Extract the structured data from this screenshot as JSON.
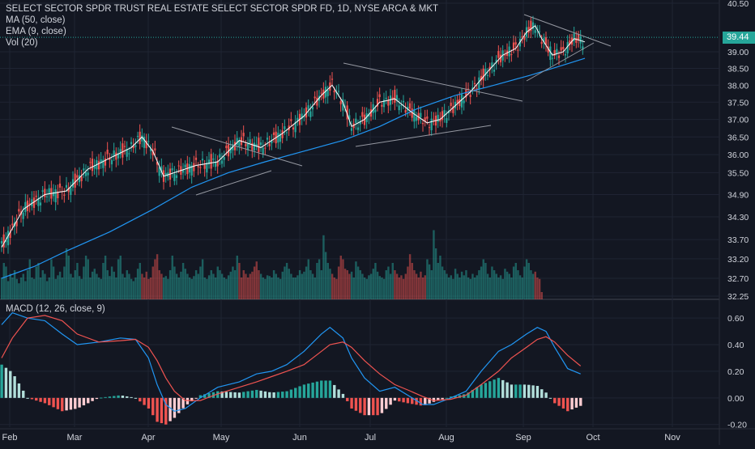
{
  "legend": {
    "title": "SELECT SECTOR SPDR TRUST REAL ESTATE SELECT SECTOR SPDR FD, 1D, NYSE ARCA & MKT",
    "ma": "MA (50, close)",
    "ema": "EMA (9, close)",
    "vol": "Vol (20)",
    "macd": "MACD (12, 26, close, 9)"
  },
  "last_price_label": "39.44",
  "colors": {
    "background": "#131722",
    "grid": "#1f2433",
    "up": "#26a69a",
    "down": "#ef5350",
    "ma50": "#2196f3",
    "ema9": "#ffffff",
    "macd": "#2196f3",
    "signal": "#ef5350",
    "hist_up_strong": "#26a69a",
    "hist_up_weak": "#b2dfdb",
    "hist_down_strong": "#ef5350",
    "hist_down_weak": "#ffcdd2",
    "text": "#d1d4dc",
    "trendline": "#9598a1"
  },
  "chart_data": [
    {
      "type": "candlestick",
      "title": "SELECT SECTOR SPDR TRUST REAL ESTATE SELECT SECTOR SPDR FD, 1D, NYSE ARCA & MKT",
      "x_ticks": [
        "Feb",
        "Mar",
        "Apr",
        "May",
        "Jun",
        "Jul",
        "Aug",
        "Sep",
        "Oct",
        "Nov"
      ],
      "y_ticks": [
        "40.50",
        "39.00",
        "38.50",
        "38.00",
        "37.50",
        "37.00",
        "36.50",
        "36.00",
        "35.50",
        "34.90",
        "34.30",
        "33.70",
        "33.20",
        "32.70",
        "32.25"
      ],
      "y_axis": "log",
      "ylim": [
        32.25,
        40.5
      ],
      "last_close": 39.44,
      "series": [
        {
          "name": "MA (50, close)",
          "points": [
            [
              0,
              32.7
            ],
            [
              15,
              33.0
            ],
            [
              30,
              33.4
            ],
            [
              50,
              33.9
            ],
            [
              70,
              34.5
            ],
            [
              88,
              35.1
            ],
            [
              105,
              35.5
            ],
            [
              122,
              35.8
            ],
            [
              140,
              36.1
            ],
            [
              158,
              36.4
            ],
            [
              175,
              36.8
            ],
            [
              192,
              37.3
            ],
            [
              210,
              37.7
            ],
            [
              228,
              38.0
            ],
            [
              245,
              38.3
            ],
            [
              260,
              38.6
            ],
            [
              270,
              38.8
            ]
          ]
        },
        {
          "name": "EMA (9, close)",
          "points": [
            [
              0,
              33.5
            ],
            [
              10,
              34.5
            ],
            [
              20,
              34.9
            ],
            [
              30,
              35.0
            ],
            [
              40,
              35.6
            ],
            [
              50,
              35.9
            ],
            [
              60,
              36.2
            ],
            [
              65,
              36.5
            ],
            [
              70,
              36.1
            ],
            [
              75,
              35.4
            ],
            [
              80,
              35.5
            ],
            [
              90,
              35.7
            ],
            [
              100,
              35.8
            ],
            [
              110,
              36.4
            ],
            [
              120,
              36.2
            ],
            [
              130,
              36.6
            ],
            [
              140,
              37.1
            ],
            [
              148,
              37.7
            ],
            [
              153,
              38.0
            ],
            [
              158,
              37.5
            ],
            [
              162,
              36.8
            ],
            [
              168,
              37.0
            ],
            [
              175,
              37.5
            ],
            [
              182,
              37.6
            ],
            [
              190,
              37.2
            ],
            [
              197,
              36.9
            ],
            [
              203,
              37.0
            ],
            [
              210,
              37.4
            ],
            [
              217,
              37.8
            ],
            [
              225,
              38.4
            ],
            [
              232,
              38.9
            ],
            [
              238,
              39.1
            ],
            [
              243,
              39.6
            ],
            [
              247,
              39.8
            ],
            [
              250,
              39.4
            ],
            [
              255,
              38.9
            ],
            [
              260,
              39.0
            ],
            [
              265,
              39.4
            ],
            [
              270,
              39.3
            ]
          ]
        }
      ]
    },
    {
      "type": "bar",
      "name": "Vol (20)",
      "unit": "relative",
      "values": [
        0.3,
        0.5,
        0.45,
        0.25,
        0.35,
        0.3,
        0.4,
        0.28,
        0.22,
        0.3,
        0.35,
        0.25,
        0.4,
        0.55,
        0.3,
        0.28,
        0.45,
        0.5,
        0.3,
        0.4,
        0.35,
        0.25,
        0.3,
        0.55,
        0.45,
        0.28,
        0.33,
        0.38,
        0.3,
        0.45,
        0.7,
        0.6,
        0.35,
        0.3,
        0.4,
        0.5,
        0.32,
        0.28,
        0.45,
        0.6,
        0.55,
        0.3,
        0.38,
        0.42,
        0.35,
        0.3,
        0.28,
        0.5,
        0.6,
        0.4,
        0.32,
        0.45,
        0.38,
        0.3,
        0.55,
        0.6,
        0.35,
        0.3,
        0.4,
        0.35,
        0.28,
        0.25,
        0.3,
        0.42,
        0.5,
        0.35,
        0.3,
        0.38,
        0.28,
        0.3,
        0.45,
        0.55,
        0.62,
        0.4,
        0.35,
        0.3,
        0.32,
        0.28,
        0.4,
        0.6,
        0.45,
        0.35,
        0.3,
        0.38,
        0.5,
        0.42,
        0.35,
        0.3,
        0.28,
        0.32,
        0.4,
        0.35,
        0.45,
        0.55,
        0.3,
        0.28,
        0.33,
        0.4,
        0.35,
        0.3,
        0.45,
        0.4,
        0.35,
        0.3,
        0.28,
        0.33,
        0.38,
        0.45,
        0.4,
        0.6,
        0.5,
        0.3,
        0.4,
        0.35,
        0.3,
        0.35,
        0.38,
        0.45,
        0.52,
        0.4,
        0.35,
        0.3,
        0.28,
        0.33,
        0.32,
        0.3,
        0.4,
        0.35,
        0.3,
        0.28,
        0.38,
        0.45,
        0.5,
        0.42,
        0.35,
        0.3,
        0.3,
        0.33,
        0.4,
        0.35,
        0.38,
        0.45,
        0.55,
        0.4,
        0.35,
        0.3,
        0.5,
        0.55,
        0.4,
        0.88,
        0.65,
        0.5,
        0.42,
        0.35,
        0.3,
        0.28,
        0.45,
        0.6,
        0.55,
        0.42,
        0.4,
        0.35,
        0.38,
        0.3,
        0.52,
        0.45,
        0.4,
        0.35,
        0.3,
        0.28,
        0.33,
        0.35,
        0.42,
        0.5,
        0.38,
        0.32,
        0.3,
        0.28,
        0.4,
        0.45,
        0.35,
        0.5,
        0.4,
        0.35,
        0.3,
        0.33,
        0.28,
        0.35,
        0.45,
        0.62,
        0.5,
        0.4,
        0.35,
        0.3,
        0.38,
        0.3,
        0.33,
        0.55,
        0.48,
        0.4,
        0.95,
        0.7,
        0.5,
        0.6,
        0.45,
        0.4,
        0.35,
        0.3,
        0.33,
        0.28,
        0.42,
        0.35,
        0.3,
        0.38,
        0.33,
        0.4,
        0.3,
        0.28,
        0.35,
        0.3,
        0.33,
        0.4,
        0.45,
        0.55,
        0.5,
        0.35,
        0.3,
        0.45,
        0.4,
        0.35,
        0.3,
        0.33,
        0.28,
        0.42,
        0.38,
        0.35,
        0.3,
        0.45,
        0.5,
        0.4,
        0.33,
        0.3,
        0.45,
        0.55,
        0.5,
        0.4,
        0.35,
        0.38,
        0.3,
        0.28,
        0.1
      ]
    },
    {
      "type": "line",
      "title": "MACD (12, 26, close, 9)",
      "y_ticks": [
        "0.60",
        "0.40",
        "0.20",
        "0.00",
        "-0.20"
      ],
      "ylim": [
        -0.22,
        0.68
      ],
      "series": [
        {
          "name": "MACD",
          "points": [
            [
              0,
              0.55
            ],
            [
              5,
              0.64
            ],
            [
              12,
              0.6
            ],
            [
              20,
              0.58
            ],
            [
              28,
              0.48
            ],
            [
              35,
              0.4
            ],
            [
              45,
              0.42
            ],
            [
              55,
              0.45
            ],
            [
              62,
              0.44
            ],
            [
              68,
              0.3
            ],
            [
              72,
              0.1
            ],
            [
              76,
              -0.05
            ],
            [
              80,
              -0.1
            ],
            [
              85,
              -0.08
            ],
            [
              92,
              0.0
            ],
            [
              100,
              0.08
            ],
            [
              110,
              0.12
            ],
            [
              118,
              0.18
            ],
            [
              125,
              0.2
            ],
            [
              132,
              0.25
            ],
            [
              140,
              0.35
            ],
            [
              148,
              0.48
            ],
            [
              152,
              0.53
            ],
            [
              158,
              0.45
            ],
            [
              162,
              0.3
            ],
            [
              168,
              0.15
            ],
            [
              175,
              0.05
            ],
            [
              182,
              0.08
            ],
            [
              188,
              0.02
            ],
            [
              195,
              -0.05
            ],
            [
              200,
              -0.05
            ],
            [
              208,
              0.0
            ],
            [
              215,
              0.05
            ],
            [
              222,
              0.2
            ],
            [
              230,
              0.35
            ],
            [
              236,
              0.4
            ],
            [
              243,
              0.48
            ],
            [
              248,
              0.53
            ],
            [
              252,
              0.5
            ],
            [
              256,
              0.38
            ],
            [
              262,
              0.22
            ],
            [
              268,
              0.18
            ]
          ]
        },
        {
          "name": "Signal",
          "points": [
            [
              0,
              0.3
            ],
            [
              5,
              0.45
            ],
            [
              12,
              0.6
            ],
            [
              20,
              0.62
            ],
            [
              28,
              0.58
            ],
            [
              35,
              0.48
            ],
            [
              45,
              0.42
            ],
            [
              55,
              0.43
            ],
            [
              62,
              0.44
            ],
            [
              68,
              0.38
            ],
            [
              72,
              0.28
            ],
            [
              76,
              0.15
            ],
            [
              80,
              0.05
            ],
            [
              85,
              -0.02
            ],
            [
              92,
              -0.02
            ],
            [
              100,
              0.03
            ],
            [
              110,
              0.08
            ],
            [
              118,
              0.12
            ],
            [
              125,
              0.16
            ],
            [
              132,
              0.2
            ],
            [
              140,
              0.25
            ],
            [
              148,
              0.35
            ],
            [
              152,
              0.4
            ],
            [
              158,
              0.42
            ],
            [
              162,
              0.38
            ],
            [
              168,
              0.28
            ],
            [
              175,
              0.18
            ],
            [
              182,
              0.1
            ],
            [
              188,
              0.06
            ],
            [
              195,
              0.01
            ],
            [
              200,
              -0.02
            ],
            [
              208,
              -0.01
            ],
            [
              215,
              0.02
            ],
            [
              222,
              0.1
            ],
            [
              230,
              0.2
            ],
            [
              236,
              0.3
            ],
            [
              243,
              0.38
            ],
            [
              248,
              0.44
            ],
            [
              252,
              0.46
            ],
            [
              256,
              0.42
            ],
            [
              262,
              0.32
            ],
            [
              268,
              0.24
            ]
          ]
        }
      ]
    }
  ]
}
